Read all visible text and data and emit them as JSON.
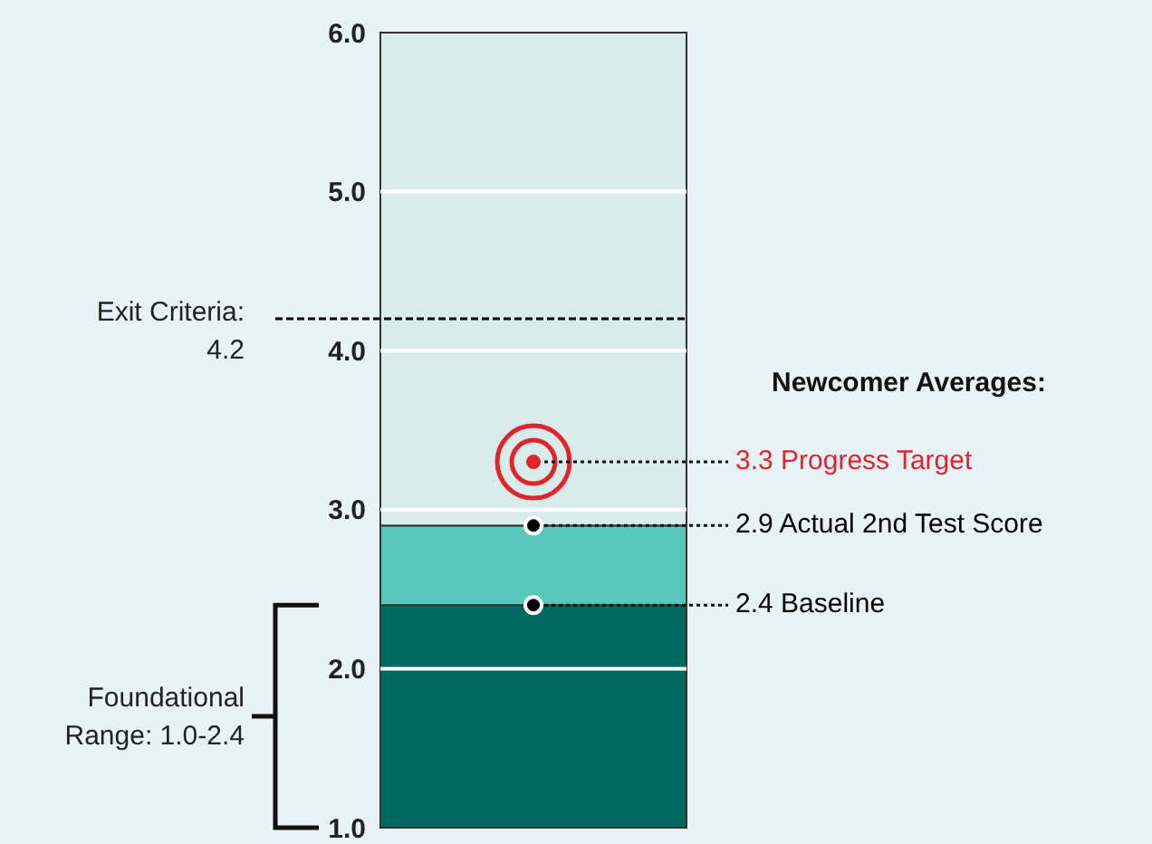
{
  "chart_data": {
    "type": "scatter",
    "categories": [
      null
    ],
    "series": [
      {
        "name": "Progress Target",
        "color": "#e3222b",
        "values": [
          3.3
        ],
        "value_labels": [
          "3.3"
        ]
      },
      {
        "name": "Actual 2nd Test Score",
        "color": "#000000",
        "values": [
          2.9
        ],
        "value_labels": [
          "2.9"
        ]
      },
      {
        "name": "Baseline",
        "color": "#000000",
        "values": [
          2.4
        ],
        "value_labels": [
          "2.4"
        ]
      }
    ],
    "marker": "circle",
    "ylim": [
      1,
      6
    ],
    "yticks": [
      {
        "value": 1,
        "label": "1.0"
      },
      {
        "value": 2,
        "label": "2.0"
      },
      {
        "value": 3,
        "label": "3.0"
      },
      {
        "value": 4,
        "label": "4.0"
      },
      {
        "value": 5,
        "label": "5.0"
      },
      {
        "value": 6,
        "label": "6.0"
      }
    ],
    "grid": "y",
    "bands": [
      {
        "axis": "y",
        "from": 1.0,
        "to": 2.4,
        "color": "#00695f"
      },
      {
        "axis": "y",
        "from": 2.4,
        "to": 2.9,
        "color": "#58c8bc"
      },
      {
        "axis": "y",
        "from": 2.9,
        "to": 6.0,
        "color": "#d8ecea"
      }
    ],
    "ref_lines": [
      {
        "axis": "y",
        "value": 4.2,
        "label": "Exit Criteria: 4.2",
        "line_style": "dashed",
        "color": "#000000"
      }
    ],
    "annotations": [
      "Newcomer Averages:",
      "Foundational Range: 1.0-2.4"
    ]
  }
}
